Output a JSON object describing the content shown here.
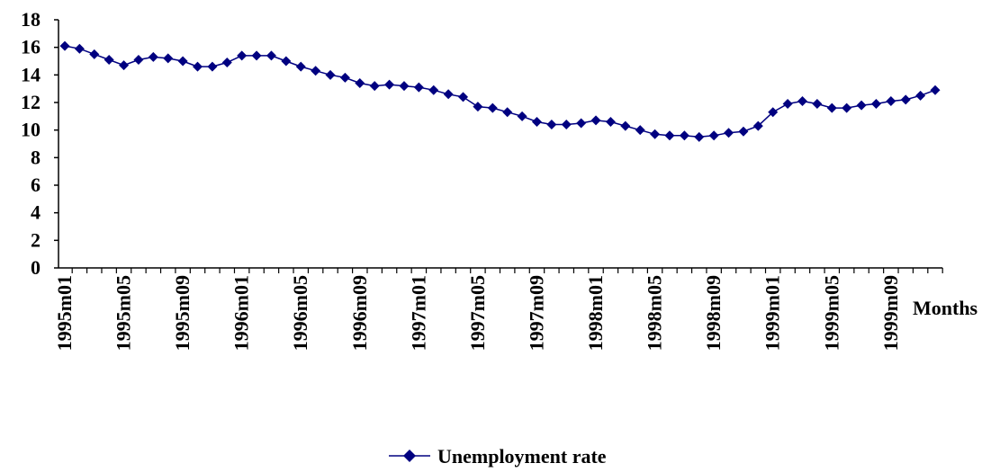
{
  "chart_data": {
    "type": "line",
    "title": "",
    "xlabel": "Months",
    "ylabel": "",
    "ylim": [
      0,
      18
    ],
    "yticks": [
      0,
      2,
      4,
      6,
      8,
      10,
      12,
      14,
      16,
      18
    ],
    "grid": false,
    "legend_position": "bottom",
    "categories": [
      "1995m01",
      "1995m02",
      "1995m03",
      "1995m04",
      "1995m05",
      "1995m06",
      "1995m07",
      "1995m08",
      "1995m09",
      "1995m10",
      "1995m11",
      "1995m12",
      "1996m01",
      "1996m02",
      "1996m03",
      "1996m04",
      "1996m05",
      "1996m06",
      "1996m07",
      "1996m08",
      "1996m09",
      "1996m10",
      "1996m11",
      "1996m12",
      "1997m01",
      "1997m02",
      "1997m03",
      "1997m04",
      "1997m05",
      "1997m06",
      "1997m07",
      "1997m08",
      "1997m09",
      "1997m10",
      "1997m11",
      "1997m12",
      "1998m01",
      "1998m02",
      "1998m03",
      "1998m04",
      "1998m05",
      "1998m06",
      "1998m07",
      "1998m08",
      "1998m09",
      "1998m10",
      "1998m11",
      "1998m12",
      "1999m01",
      "1999m02",
      "1999m03",
      "1999m04",
      "1999m05",
      "1999m06",
      "1999m07",
      "1999m08",
      "1999m09",
      "1999m10",
      "1999m11",
      "1999m12"
    ],
    "tick_labels": [
      "1995m01",
      "1995m05",
      "1995m09",
      "1996m01",
      "1996m05",
      "1996m09",
      "1997m01",
      "1997m05",
      "1997m09",
      "1998m01",
      "1998m05",
      "1998m09",
      "1999m01",
      "1999m05",
      "1999m09"
    ],
    "series": [
      {
        "name": "Unemployment rate",
        "color": "#000080",
        "values": [
          16.1,
          15.9,
          15.5,
          15.1,
          14.7,
          15.1,
          15.3,
          15.2,
          15.0,
          14.6,
          14.6,
          14.9,
          15.4,
          15.4,
          15.4,
          15.0,
          14.6,
          14.3,
          14.0,
          13.8,
          13.4,
          13.2,
          13.3,
          13.2,
          13.1,
          12.9,
          12.6,
          12.4,
          11.7,
          11.6,
          11.3,
          11.0,
          10.6,
          10.4,
          10.4,
          10.5,
          10.7,
          10.6,
          10.3,
          10.0,
          9.7,
          9.6,
          9.6,
          9.5,
          9.6,
          9.8,
          9.9,
          10.3,
          11.3,
          11.9,
          12.1,
          11.9,
          11.6,
          11.6,
          11.8,
          11.9,
          12.1,
          12.2,
          12.5,
          12.9
        ]
      }
    ]
  }
}
